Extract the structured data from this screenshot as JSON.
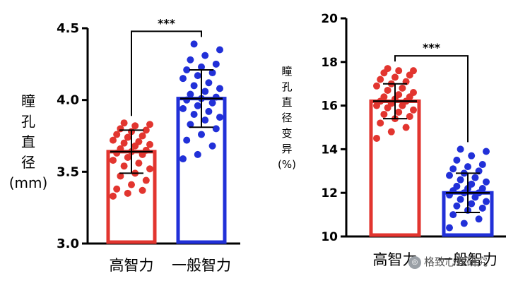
{
  "chart_data": [
    {
      "type": "bar",
      "categories": [
        "高智力",
        "一般智力"
      ],
      "values": [
        3.64,
        4.01
      ],
      "error": [
        0.15,
        0.2
      ],
      "points": [
        [
          3.33,
          3.35,
          3.37,
          3.38,
          3.41,
          3.44,
          3.47,
          3.49,
          3.52,
          3.54,
          3.56,
          3.58,
          3.6,
          3.62,
          3.63,
          3.64,
          3.65,
          3.66,
          3.68,
          3.69,
          3.7,
          3.71,
          3.72,
          3.74,
          3.75,
          3.76,
          3.78,
          3.79,
          3.8,
          3.82,
          3.83,
          3.84
        ],
        [
          3.59,
          3.62,
          3.68,
          3.72,
          3.76,
          3.8,
          3.83,
          3.86,
          3.88,
          3.9,
          3.92,
          3.94,
          3.96,
          3.98,
          4.0,
          4.01,
          4.02,
          4.04,
          4.06,
          4.08,
          4.1,
          4.12,
          4.15,
          4.17,
          4.19,
          4.21,
          4.23,
          4.25,
          4.28,
          4.31,
          4.35,
          4.39
        ]
      ],
      "colors": [
        "#e2352f",
        "#2130d8"
      ],
      "ylabel": "瞳孔直径(mm)",
      "ylim": [
        3.0,
        4.5
      ],
      "yticks": [
        "3.0",
        "3.5",
        "4.0",
        "4.5"
      ],
      "significance": "***"
    },
    {
      "type": "bar",
      "categories": [
        "高智力",
        "一般智力"
      ],
      "values": [
        16.2,
        12.0
      ],
      "error": [
        0.8,
        0.9
      ],
      "points": [
        [
          14.5,
          14.8,
          15.0,
          15.2,
          15.4,
          15.5,
          15.6,
          15.7,
          15.8,
          15.9,
          16.0,
          16.0,
          16.1,
          16.2,
          16.2,
          16.3,
          16.4,
          16.4,
          16.5,
          16.6,
          16.7,
          16.8,
          16.9,
          17.0,
          17.1,
          17.2,
          17.3,
          17.4,
          17.5,
          17.6,
          17.6,
          17.7
        ],
        [
          10.4,
          10.6,
          10.8,
          11.0,
          11.2,
          11.3,
          11.4,
          11.5,
          11.6,
          11.7,
          11.8,
          11.9,
          12.0,
          12.0,
          12.1,
          12.2,
          12.2,
          12.3,
          12.4,
          12.5,
          12.6,
          12.7,
          12.8,
          12.9,
          13.0,
          13.1,
          13.2,
          13.3,
          13.5,
          13.7,
          13.9,
          14.0
        ]
      ],
      "colors": [
        "#e2352f",
        "#2130d8"
      ],
      "ylabel": "瞳孔直径变异(%)",
      "ylim": [
        10,
        20
      ],
      "yticks": [
        "10",
        "12",
        "14",
        "16",
        "18",
        "20"
      ],
      "significance": "***"
    }
  ],
  "watermark": "格致心理研究"
}
